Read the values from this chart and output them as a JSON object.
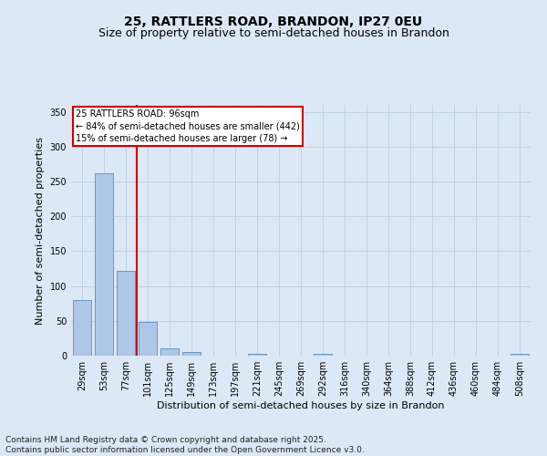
{
  "title_line1": "25, RATTLERS ROAD, BRANDON, IP27 0EU",
  "title_line2": "Size of property relative to semi-detached houses in Brandon",
  "xlabel": "Distribution of semi-detached houses by size in Brandon",
  "ylabel": "Number of semi-detached properties",
  "categories": [
    "29sqm",
    "53sqm",
    "77sqm",
    "101sqm",
    "125sqm",
    "149sqm",
    "173sqm",
    "197sqm",
    "221sqm",
    "245sqm",
    "269sqm",
    "292sqm",
    "316sqm",
    "340sqm",
    "364sqm",
    "388sqm",
    "412sqm",
    "436sqm",
    "460sqm",
    "484sqm",
    "508sqm"
  ],
  "values": [
    80,
    262,
    122,
    49,
    11,
    5,
    0,
    0,
    3,
    0,
    0,
    2,
    0,
    0,
    0,
    0,
    0,
    0,
    0,
    0,
    2
  ],
  "bar_color": "#aec6e8",
  "bar_edge_color": "#5a8fc0",
  "vline_color": "#cc0000",
  "annotation_box_text": "25 RATTLERS ROAD: 96sqm\n← 84% of semi-detached houses are smaller (442)\n15% of semi-detached houses are larger (78) →",
  "annotation_box_color": "#cc0000",
  "annotation_box_bg": "#ffffff",
  "ylim": [
    0,
    360
  ],
  "yticks": [
    0,
    50,
    100,
    150,
    200,
    250,
    300,
    350
  ],
  "footer_text": "Contains HM Land Registry data © Crown copyright and database right 2025.\nContains public sector information licensed under the Open Government Licence v3.0.",
  "bg_color": "#dce8f5",
  "plot_bg_color": "#dce8f5",
  "title_fontsize": 10,
  "subtitle_fontsize": 9,
  "axis_label_fontsize": 8,
  "tick_fontsize": 7,
  "footer_fontsize": 6.5
}
